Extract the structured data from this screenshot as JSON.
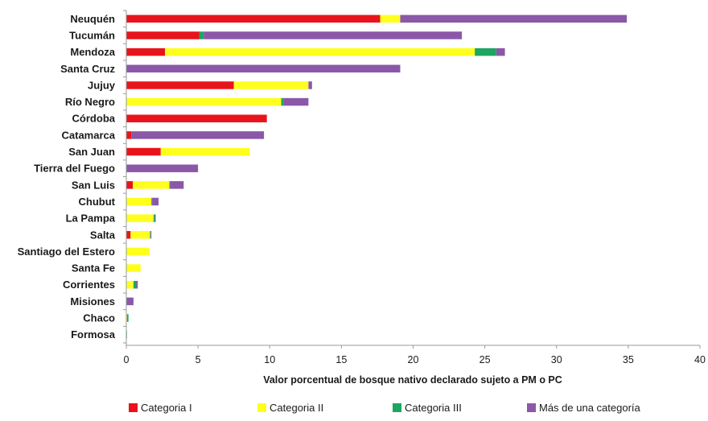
{
  "chart_data": {
    "type": "bar",
    "orientation": "horizontal",
    "stacked": true,
    "title": "",
    "xlabel": "Valor porcentual de bosque nativo declarado sujeto a PM o PC",
    "ylabel": "",
    "xlim": [
      0,
      40
    ],
    "xticks": [
      0,
      5,
      10,
      15,
      20,
      25,
      30,
      35,
      40
    ],
    "grid": false,
    "legend_position": "bottom",
    "categories": [
      "Neuquén",
      "Tucumán",
      "Mendoza",
      "Santa Cruz",
      "Jujuy",
      "Río Negro",
      "Córdoba",
      "Catamarca",
      "San Juan",
      "Tierra del Fuego",
      "San Luis",
      "Chubut",
      "La Pampa",
      "Salta",
      "Santiago del Estero",
      "Santa Fe",
      "Corrientes",
      "Misiones",
      "Chaco",
      "Formosa"
    ],
    "series": [
      {
        "name": "Categoria I",
        "color": "#e8141c",
        "values": [
          17.7,
          5.1,
          2.7,
          0,
          7.5,
          0,
          9.8,
          0.35,
          2.4,
          0,
          0.45,
          0,
          0,
          0.3,
          0,
          0,
          0,
          0,
          0,
          0
        ]
      },
      {
        "name": "Categoria II",
        "color": "#ffff1e",
        "values": [
          1.4,
          0,
          21.6,
          0,
          5.2,
          10.8,
          0,
          0,
          6.2,
          0,
          2.55,
          1.75,
          1.9,
          1.35,
          1.6,
          1.0,
          0.5,
          0,
          0.05,
          0
        ]
      },
      {
        "name": "Categoria III",
        "color": "#1ea562",
        "values": [
          0,
          0.3,
          1.5,
          0,
          0,
          0.15,
          0,
          0,
          0,
          0,
          0.05,
          0.05,
          0.1,
          0.05,
          0,
          0,
          0.2,
          0,
          0.1,
          0.02
        ]
      },
      {
        "name": "Más de una categoría",
        "color": "#8b58a8",
        "values": [
          15.8,
          18.0,
          0.6,
          19.1,
          0.25,
          1.75,
          0,
          9.25,
          0,
          5.0,
          0.95,
          0.45,
          0.05,
          0.05,
          0,
          0,
          0.1,
          0.5,
          0,
          0
        ]
      }
    ]
  }
}
